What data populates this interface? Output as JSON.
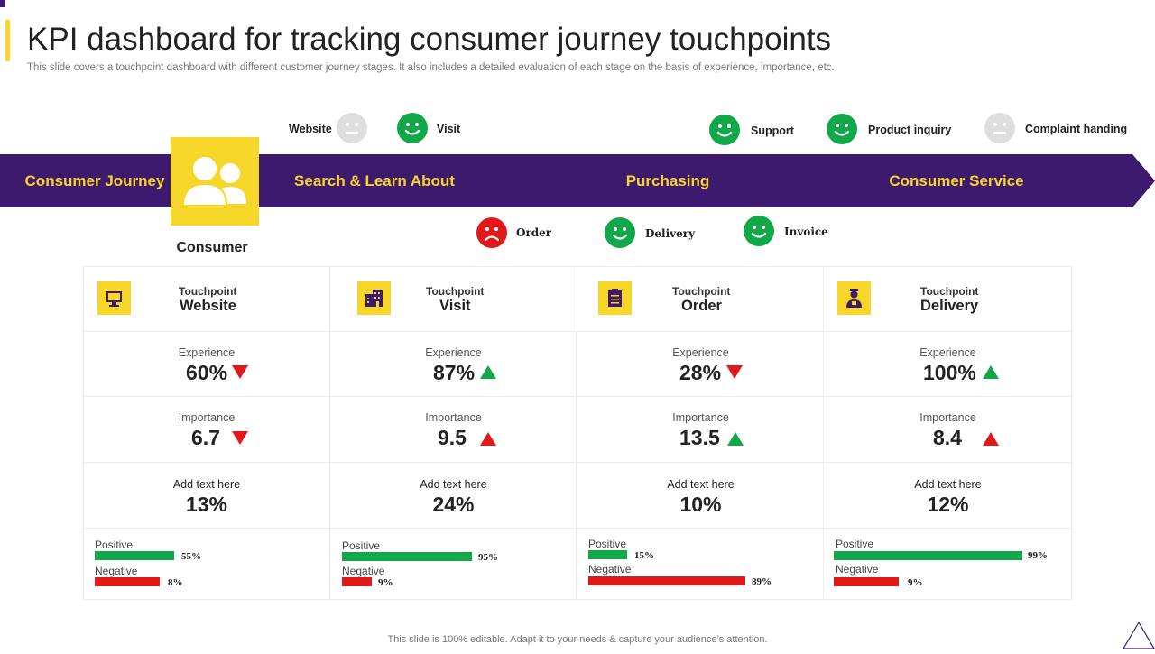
{
  "header": {
    "title": "KPI dashboard for tracking consumer journey touchpoints",
    "subtitle": "This slide covers a touchpoint dashboard with different customer journey stages. It also includes a detailed evaluation of each stage on the basis of experience, importance, etc."
  },
  "colors": {
    "purple": "#3d1a6e",
    "yellow": "#f7d62a",
    "green": "#12a84a",
    "red": "#e01a1a",
    "gray": "#dedede"
  },
  "faces_top": [
    {
      "label": "Website",
      "mood": "neutral"
    },
    {
      "label": "Visit",
      "mood": "happy"
    },
    {
      "label": "Support",
      "mood": "happy"
    },
    {
      "label": "Product inquiry",
      "mood": "happy"
    },
    {
      "label": "Complaint handing",
      "mood": "neutral"
    }
  ],
  "faces_bottom": [
    {
      "label": "Order",
      "mood": "sad"
    },
    {
      "label": "Delivery",
      "mood": "happy"
    },
    {
      "label": "Invoice",
      "mood": "happy"
    }
  ],
  "banner": {
    "stages": [
      "Consumer Journey",
      "Search & Learn About",
      "Purchasing",
      "Consumer Service"
    ],
    "consumer_label": "Consumer",
    "consumer_icon": "users-icon"
  },
  "touchpoints": [
    {
      "small": "Touchpoint",
      "name": "Website",
      "icon": "monitor-icon",
      "experience_label": "Experience",
      "experience": "60%",
      "experience_trend": "down",
      "importance_label": "Importance",
      "importance": "6.7",
      "importance_trend": "down",
      "add_label": "Add text here",
      "add_value": "13%",
      "positive_label": "Positive",
      "positive_pct": "55%",
      "positive_value": 55,
      "negative_label": "Negative",
      "negative_pct": "8%",
      "negative_value": 8
    },
    {
      "small": "Touchpoint",
      "name": "Visit",
      "icon": "building-icon",
      "experience_label": "Experience",
      "experience": "87%",
      "experience_trend": "up",
      "importance_label": "Importance",
      "importance": "9.5",
      "importance_trend": "up-red",
      "add_label": "Add text here",
      "add_value": "24%",
      "positive_label": "Positive",
      "positive_pct": "95%",
      "positive_value": 95,
      "negative_label": "Negative",
      "negative_pct": "9%",
      "negative_value": 9
    },
    {
      "small": "Touchpoint",
      "name": "Order",
      "icon": "clipboard-icon",
      "experience_label": "Experience",
      "experience": "28%",
      "experience_trend": "down",
      "importance_label": "Importance",
      "importance": "13.5",
      "importance_trend": "up",
      "add_label": "Add text here",
      "add_value": "10%",
      "positive_label": "Positive",
      "positive_pct": "15%",
      "positive_value": 15,
      "negative_label": "Negative",
      "negative_pct": "89%",
      "negative_value": 89
    },
    {
      "small": "Touchpoint",
      "name": "Delivery",
      "icon": "delivery-person-icon",
      "experience_label": "Experience",
      "experience": "100%",
      "experience_trend": "up",
      "importance_label": "Importance",
      "importance": "8.4",
      "importance_trend": "up-red",
      "add_label": "Add text here",
      "add_value": "12%",
      "positive_label": "Positive",
      "positive_pct": "99%",
      "positive_value": 99,
      "negative_label": "Negative",
      "negative_pct": "9%",
      "negative_value": 9
    }
  ],
  "footer": "This slide is 100% editable. Adapt it to your needs & capture your audience’s attention."
}
